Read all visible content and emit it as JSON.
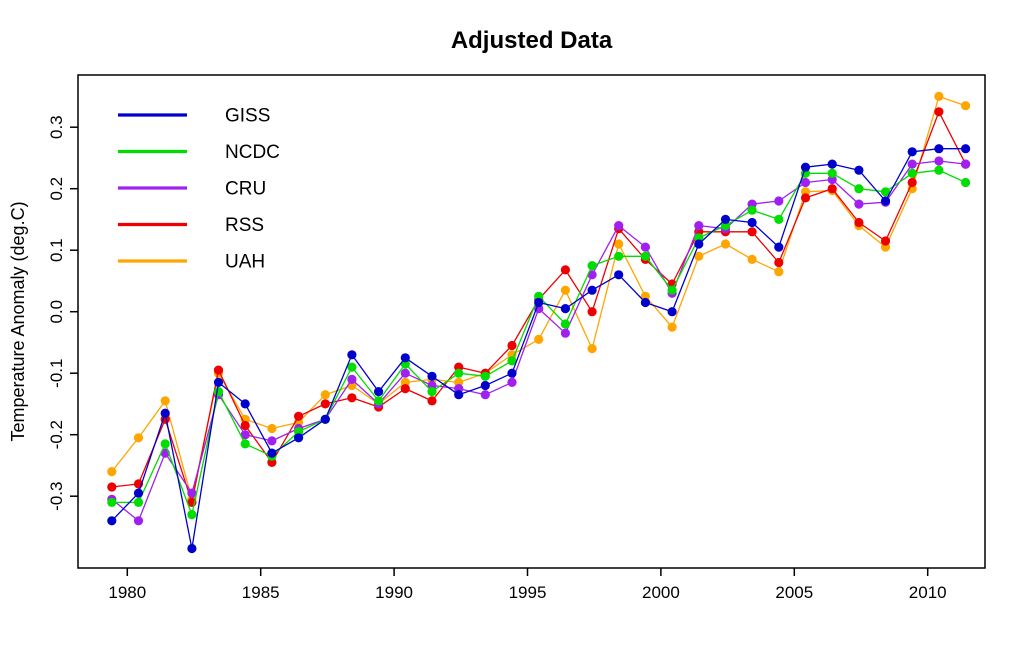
{
  "chart_data": {
    "type": "line",
    "title": "Adjusted Data",
    "xlabel": "",
    "ylabel": "Temperature Anomaly (deg.C)",
    "x_ticks": [
      1980,
      1985,
      1990,
      1995,
      2000,
      2005,
      2010
    ],
    "x_tick_labels": [
      "1980",
      "1985",
      "1990",
      "1995",
      "2000",
      "2005",
      "2010"
    ],
    "y_ticks": [
      0.3,
      0.2,
      0.1,
      0.0,
      -0.1,
      -0.2,
      -0.3
    ],
    "y_tick_labels": [
      "0.3",
      "0.2",
      "0.1",
      "0.0",
      "-0.1",
      "-0.2",
      "-0.3"
    ],
    "xlim": [
      1978.1,
      2012.3
    ],
    "ylim": [
      -0.417,
      0.385
    ],
    "grid": false,
    "legend_position": "top-left",
    "marker": "filled-circle",
    "years": [
      1979,
      1980,
      1981,
      1982,
      1983,
      1984,
      1985,
      1986,
      1987,
      1988,
      1989,
      1990,
      1991,
      1992,
      1993,
      1994,
      1995,
      1996,
      1997,
      1998,
      1999,
      2000,
      2001,
      2002,
      2003,
      2004,
      2005,
      2006,
      2007,
      2008,
      2009,
      2010,
      2011
    ],
    "series": [
      {
        "name": "GISS",
        "color": "#0000CC",
        "values": [
          -0.34,
          -0.295,
          -0.165,
          -0.385,
          -0.115,
          -0.15,
          -0.23,
          -0.205,
          -0.175,
          -0.07,
          -0.13,
          -0.075,
          -0.105,
          -0.135,
          -0.12,
          -0.1,
          0.015,
          0.005,
          0.035,
          0.06,
          0.015,
          0.0,
          0.11,
          0.15,
          0.145,
          0.105,
          0.235,
          0.24,
          0.23,
          0.18,
          0.26,
          0.265,
          0.265
        ]
      },
      {
        "name": "NCDC",
        "color": "#00DD00",
        "values": [
          -0.31,
          -0.31,
          -0.215,
          -0.33,
          -0.13,
          -0.215,
          -0.235,
          -0.195,
          -0.175,
          -0.09,
          -0.145,
          -0.085,
          -0.13,
          -0.1,
          -0.105,
          -0.08,
          0.025,
          -0.02,
          0.075,
          0.09,
          0.09,
          0.035,
          0.12,
          0.14,
          0.165,
          0.15,
          0.225,
          0.225,
          0.2,
          0.195,
          0.225,
          0.23,
          0.21
        ]
      },
      {
        "name": "CRU",
        "color": "#A020F0",
        "values": [
          -0.305,
          -0.34,
          -0.23,
          -0.295,
          -0.135,
          -0.2,
          -0.21,
          -0.19,
          -0.175,
          -0.11,
          -0.15,
          -0.1,
          -0.12,
          -0.125,
          -0.135,
          -0.115,
          0.005,
          -0.035,
          0.06,
          0.14,
          0.105,
          0.03,
          0.14,
          0.135,
          0.175,
          0.18,
          0.21,
          0.215,
          0.175,
          0.178,
          0.24,
          0.245,
          0.24
        ]
      },
      {
        "name": "RSS",
        "color": "#EE0000",
        "values": [
          -0.285,
          -0.28,
          -0.175,
          -0.31,
          -0.095,
          -0.185,
          -0.245,
          -0.17,
          -0.15,
          -0.14,
          -0.155,
          -0.125,
          -0.145,
          -0.09,
          -0.1,
          -0.055,
          0.02,
          0.068,
          0.0,
          0.135,
          0.085,
          0.045,
          0.13,
          0.13,
          0.13,
          0.08,
          0.185,
          0.2,
          0.145,
          0.115,
          0.21,
          0.325,
          0.24
        ]
      },
      {
        "name": "UAH",
        "color": "#FFA500",
        "values": [
          -0.26,
          -0.205,
          -0.145,
          -0.305,
          -0.1,
          -0.175,
          -0.19,
          -0.18,
          -0.135,
          -0.12,
          -0.15,
          -0.115,
          -0.11,
          -0.115,
          -0.1,
          -0.07,
          -0.045,
          0.035,
          -0.06,
          0.11,
          0.025,
          -0.025,
          0.09,
          0.11,
          0.085,
          0.065,
          0.195,
          0.197,
          0.14,
          0.105,
          0.2,
          0.35,
          0.335
        ]
      }
    ],
    "legend": [
      "GISS",
      "NCDC",
      "CRU",
      "RSS",
      "UAH"
    ]
  },
  "colors": {
    "background": "#ffffff",
    "axis": "#000000",
    "text": "#000000"
  }
}
